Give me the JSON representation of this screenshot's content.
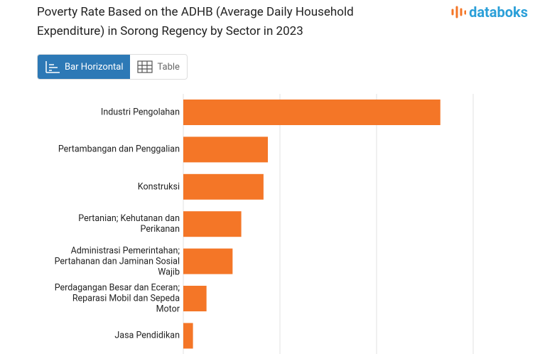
{
  "header": {
    "logo": "databoks"
  },
  "controls": {
    "bar": "Bar Horizontal",
    "table": "Table"
  },
  "chart_data": {
    "type": "bar_horizontal",
    "title": "Poverty Rate Based on the ADHB (Average Daily Household Expenditure) in Sorong Regency by Sector in 2023",
    "categories": [
      "Industri Pengolahan",
      "Pertambangan dan Penggalian",
      "Konstruksi",
      "Pertanian; Kehutanan dan Perikanan",
      "Administrasi Pemerintahan; Pertahanan dan Jaminan Sosial Wajib",
      "Perdagangan Besar dan Eceran; Reparasi Mobil dan Sepeda Motor",
      "Jasa Pendidikan"
    ],
    "values": [
      2.66,
      0.875,
      0.83,
      0.6,
      0.51,
      0.24,
      0.1
    ],
    "color": "#f47627",
    "xlim": [
      0,
      3
    ],
    "xticks": [
      0,
      1,
      2,
      3
    ],
    "grid": true,
    "tick_labels": false
  }
}
